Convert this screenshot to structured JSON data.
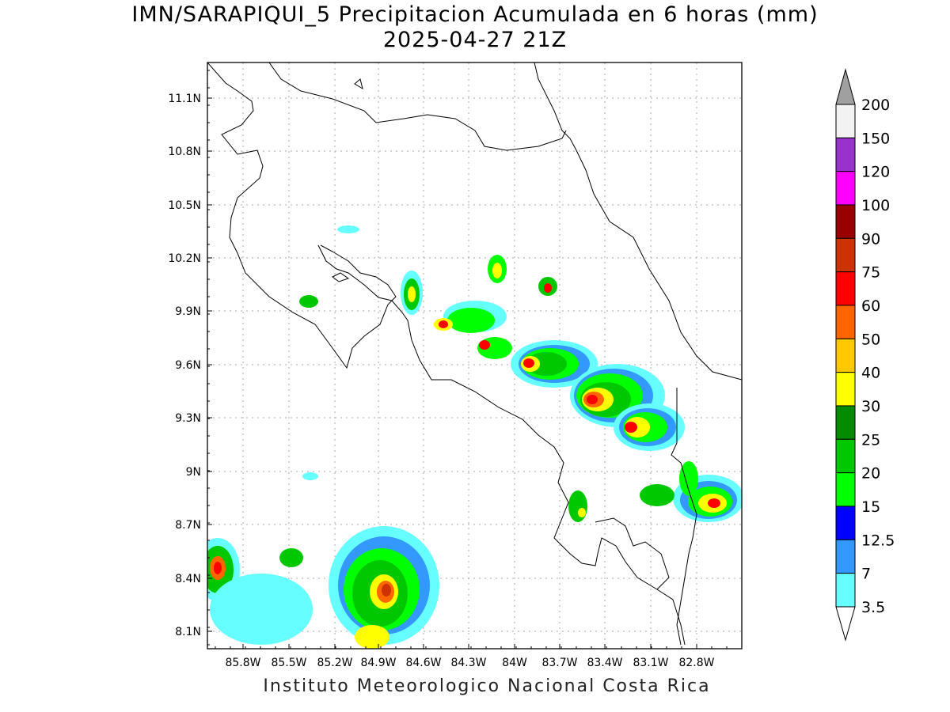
{
  "title": {
    "line1": "IMN/SARAPIQUI_5 Precipitacion Acumulada en 6 horas (mm)",
    "line2": "2025-04-27 21Z"
  },
  "footer": "Instituto Meteorologico Nacional Costa Rica",
  "map": {
    "lon_range": [
      -86.0,
      -82.7
    ],
    "lat_range": [
      8.0,
      11.3
    ],
    "x_ticks": [
      "85.8W",
      "85.5W",
      "85.2W",
      "84.9W",
      "84.6W",
      "84.3W",
      "84W",
      "83.7W",
      "83.4W",
      "83.1W",
      "82.8W"
    ],
    "y_ticks": [
      "11.1N",
      "10.8N",
      "10.5N",
      "10.2N",
      "9.9N",
      "9.6N",
      "9.3N",
      "9N",
      "8.7N",
      "8.4N",
      "8.1N"
    ],
    "grid": "dotted"
  },
  "colorbar": {
    "labels": [
      "200",
      "150",
      "120",
      "100",
      "90",
      "75",
      "60",
      "50",
      "40",
      "30",
      "25",
      "20",
      "15",
      "12.5",
      "7",
      "3.5"
    ],
    "colors": [
      "#ffffff",
      "#f2f2f2",
      "#9932cc",
      "#ff00ff",
      "#990000",
      "#cc3300",
      "#ff0000",
      "#ff6600",
      "#ffc800",
      "#ffff00",
      "#008b00",
      "#00c800",
      "#00ff00",
      "#0000ff",
      "#3399ff",
      "#66ffff"
    ],
    "top_arrow_color": "#a0a0a0",
    "bottom_arrow_color": "#ffffff"
  }
}
